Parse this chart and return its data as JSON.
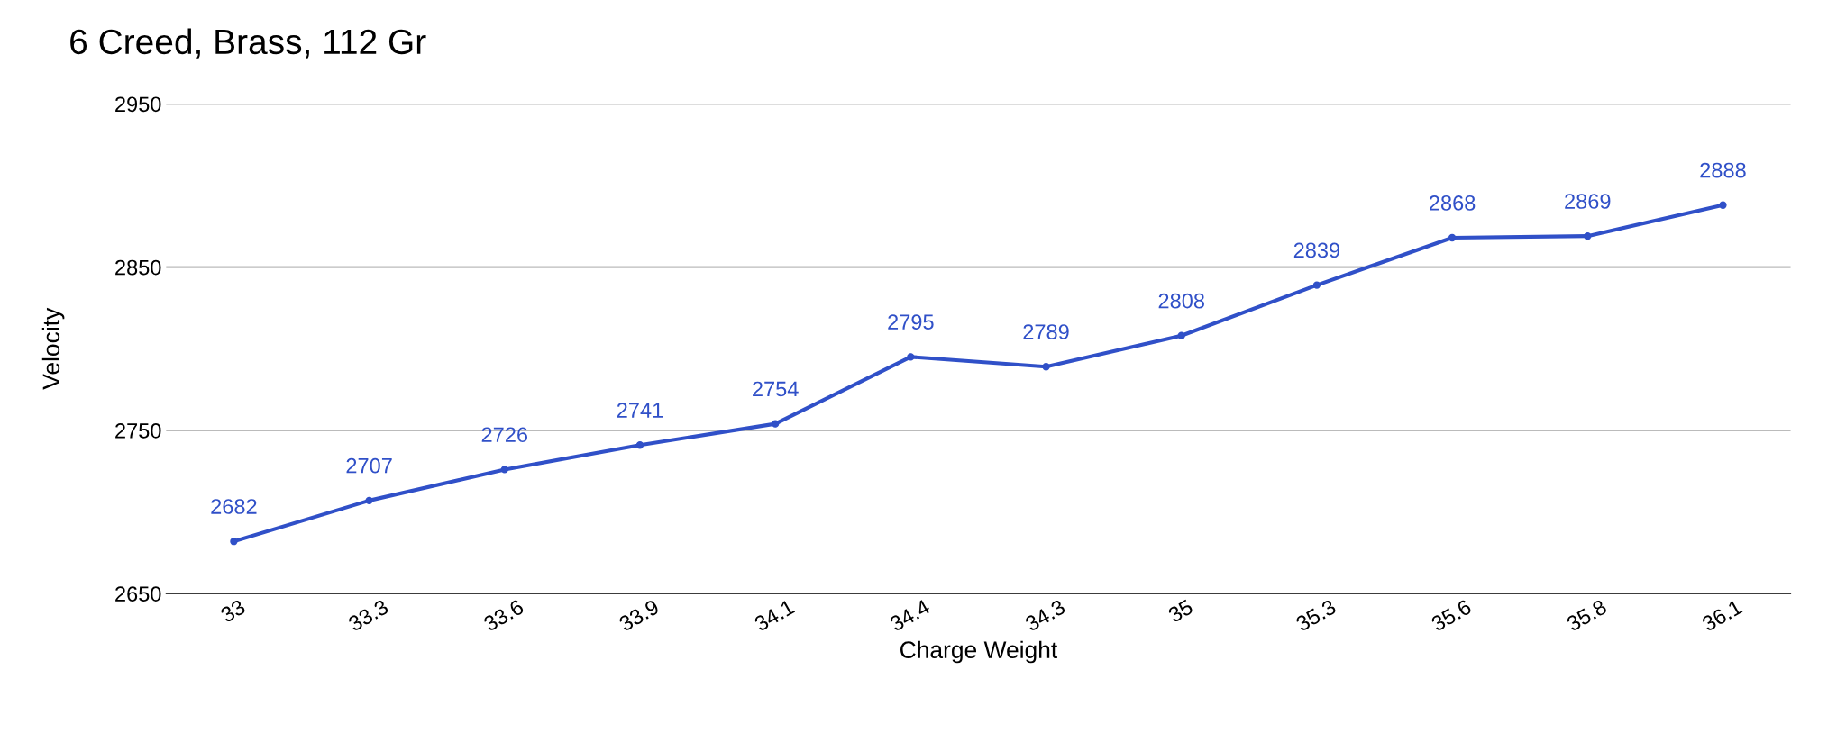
{
  "chart_data": {
    "type": "line",
    "title": "6 Creed, Brass, 112 Gr",
    "xlabel": "Charge Weight",
    "ylabel": "Velocity",
    "categories": [
      "33",
      "33.3",
      "33.6",
      "33.9",
      "34.1",
      "34.4",
      "34.3",
      "35",
      "35.3",
      "35.6",
      "35.8",
      "36.1"
    ],
    "series": [
      {
        "color": "#3050c8",
        "values": [
          2682,
          2707,
          2726,
          2741,
          2754,
          2795,
          2789,
          2808,
          2839,
          2868,
          2869,
          2888
        ]
      }
    ],
    "ylim": [
      2650,
      2950
    ],
    "yticks": [
      2650,
      2750,
      2850,
      2950
    ],
    "grid": "y",
    "marker": "circle",
    "line_style": "solid",
    "data_labels": true
  }
}
